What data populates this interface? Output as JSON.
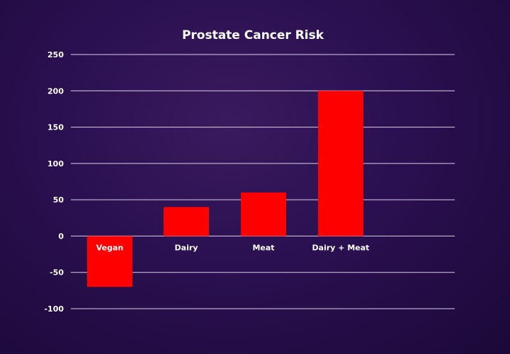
{
  "chart_data": {
    "type": "bar",
    "title": "Prostate Cancer Risk",
    "xlabel": "",
    "ylabel": "",
    "categories": [
      "Vegan",
      "Dairy",
      "Meat",
      "Dairy + Meat"
    ],
    "values": [
      -70,
      40,
      60,
      200
    ],
    "ylim": [
      -100,
      250
    ],
    "yticks": [
      250,
      200,
      150,
      100,
      50,
      0,
      -50,
      -100
    ],
    "grid": true,
    "legend": "none",
    "colors": {
      "bar": "#ff0000",
      "grid": "#d8d0e6",
      "text": "#ffffff"
    }
  }
}
